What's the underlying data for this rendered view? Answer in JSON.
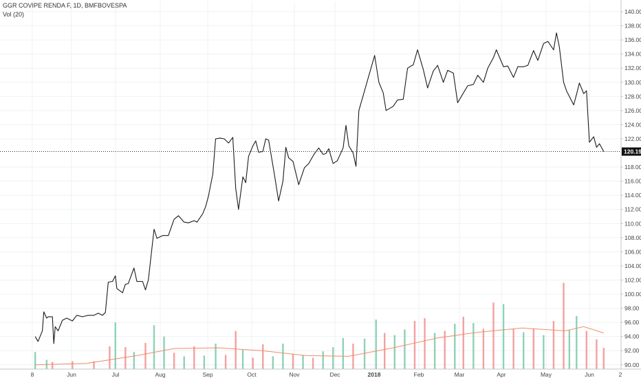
{
  "legend": {
    "title": "GGR COVIPE RENDA F, 1D, BMFBOVESPA",
    "volume": "Vol (20)"
  },
  "chart_data": {
    "type": "line",
    "title": "GGR COVIPE RENDA F, 1D, BMFBOVESPA",
    "ylim": [
      89.0,
      141.0
    ],
    "grid": true,
    "y_ticks": [
      "140.00",
      "138.00",
      "136.00",
      "134.00",
      "132.00",
      "130.00",
      "128.00",
      "126.00",
      "124.00",
      "122.00",
      "118.00",
      "116.00",
      "114.00",
      "112.00",
      "110.00",
      "108.00",
      "106.00",
      "104.00",
      "102.00",
      "100.00",
      "98.00",
      "96.00",
      "94.00",
      "92.00",
      "90.00"
    ],
    "x_ticks": [
      "8",
      "Jun",
      "Jul",
      "Aug",
      "Sep",
      "Oct",
      "Nov",
      "Dec",
      "2018",
      "Feb",
      "Mar",
      "Apr",
      "May",
      "Jun",
      "2"
    ],
    "last_price": 120.19,
    "last_price_label": "120.19",
    "colors": {
      "price": "#1a1a1a",
      "up_volume": "#8fd1b4",
      "down_volume": "#f4a0a0",
      "vol_ma": "#f08c6b",
      "grid": "#eef1f4",
      "axis_text": "#444444"
    },
    "price": [
      [
        "2017-05-10",
        94.0
      ],
      [
        "2017-05-12",
        93.3
      ],
      [
        "2017-05-15",
        94.8
      ],
      [
        "2017-05-16",
        97.5
      ],
      [
        "2017-05-18",
        96.6
      ],
      [
        "2017-05-19",
        96.8
      ],
      [
        "2017-05-22",
        96.8
      ],
      [
        "2017-05-23",
        93.0
      ],
      [
        "2017-05-24",
        95.4
      ],
      [
        "2017-05-26",
        94.8
      ],
      [
        "2017-05-29",
        96.3
      ],
      [
        "2017-06-01",
        96.6
      ],
      [
        "2017-06-05",
        96.2
      ],
      [
        "2017-06-08",
        97.0
      ],
      [
        "2017-06-12",
        96.8
      ],
      [
        "2017-06-16",
        97.0
      ],
      [
        "2017-06-20",
        97.0
      ],
      [
        "2017-06-23",
        97.3
      ],
      [
        "2017-06-26",
        97.0
      ],
      [
        "2017-06-28",
        97.4
      ],
      [
        "2017-06-30",
        101.7
      ],
      [
        "2017-07-03",
        101.8
      ],
      [
        "2017-07-05",
        102.6
      ],
      [
        "2017-07-06",
        100.8
      ],
      [
        "2017-07-10",
        100.2
      ],
      [
        "2017-07-12",
        101.4
      ],
      [
        "2017-07-14",
        101.5
      ],
      [
        "2017-07-18",
        103.7
      ],
      [
        "2017-07-20",
        101.8
      ],
      [
        "2017-07-24",
        101.8
      ],
      [
        "2017-07-26",
        100.6
      ],
      [
        "2017-07-28",
        102.0
      ],
      [
        "2017-08-01",
        109.2
      ],
      [
        "2017-08-03",
        107.9
      ],
      [
        "2017-08-07",
        108.3
      ],
      [
        "2017-08-11",
        108.3
      ],
      [
        "2017-08-15",
        110.6
      ],
      [
        "2017-08-18",
        111.1
      ],
      [
        "2017-08-22",
        110.2
      ],
      [
        "2017-08-25",
        110.1
      ],
      [
        "2017-08-29",
        110.4
      ],
      [
        "2017-08-31",
        110.2
      ],
      [
        "2017-09-04",
        111.4
      ],
      [
        "2017-09-06",
        112.4
      ],
      [
        "2017-09-08",
        113.9
      ],
      [
        "2017-09-11",
        117.0
      ],
      [
        "2017-09-13",
        122.0
      ],
      [
        "2017-09-16",
        122.1
      ],
      [
        "2017-09-19",
        122.0
      ],
      [
        "2017-09-22",
        121.4
      ],
      [
        "2017-09-25",
        122.2
      ],
      [
        "2017-09-27",
        115.0
      ],
      [
        "2017-09-29",
        112.0
      ],
      [
        "2017-10-02",
        116.6
      ],
      [
        "2017-10-04",
        115.8
      ],
      [
        "2017-10-06",
        119.5
      ],
      [
        "2017-10-09",
        121.0
      ],
      [
        "2017-10-11",
        121.7
      ],
      [
        "2017-10-13",
        120.1
      ],
      [
        "2017-10-16",
        120.2
      ],
      [
        "2017-10-18",
        122.0
      ],
      [
        "2017-10-20",
        121.8
      ],
      [
        "2017-10-24",
        117.0
      ],
      [
        "2017-10-27",
        113.2
      ],
      [
        "2017-10-30",
        116.0
      ],
      [
        "2017-11-01",
        120.8
      ],
      [
        "2017-11-03",
        119.3
      ],
      [
        "2017-11-06",
        118.8
      ],
      [
        "2017-11-10",
        115.5
      ],
      [
        "2017-11-14",
        117.9
      ],
      [
        "2017-11-17",
        118.5
      ],
      [
        "2017-11-21",
        119.9
      ],
      [
        "2017-11-24",
        120.7
      ],
      [
        "2017-11-27",
        119.8
      ],
      [
        "2017-11-29",
        119.9
      ],
      [
        "2017-12-01",
        120.6
      ],
      [
        "2017-12-04",
        118.5
      ],
      [
        "2017-12-07",
        118.9
      ],
      [
        "2017-12-11",
        120.7
      ],
      [
        "2017-12-13",
        123.9
      ],
      [
        "2017-12-15",
        121.0
      ],
      [
        "2017-12-18",
        120.0
      ],
      [
        "2017-12-20",
        118.1
      ],
      [
        "2017-12-22",
        126.0
      ],
      [
        "2018-01-02",
        133.8
      ],
      [
        "2018-01-05",
        130.0
      ],
      [
        "2018-01-08",
        128.5
      ],
      [
        "2018-01-10",
        126.0
      ],
      [
        "2018-01-15",
        126.6
      ],
      [
        "2018-01-18",
        127.5
      ],
      [
        "2018-01-22",
        127.6
      ],
      [
        "2018-01-25",
        132.0
      ],
      [
        "2018-01-29",
        132.5
      ],
      [
        "2018-02-01",
        134.6
      ],
      [
        "2018-02-05",
        131.8
      ],
      [
        "2018-02-08",
        129.2
      ],
      [
        "2018-02-12",
        131.6
      ],
      [
        "2018-02-15",
        132.4
      ],
      [
        "2018-02-19",
        130.0
      ],
      [
        "2018-02-22",
        131.7
      ],
      [
        "2018-02-26",
        131.3
      ],
      [
        "2018-03-01",
        127.1
      ],
      [
        "2018-03-05",
        128.5
      ],
      [
        "2018-03-08",
        129.5
      ],
      [
        "2018-03-12",
        129.7
      ],
      [
        "2018-03-15",
        131.0
      ],
      [
        "2018-03-19",
        130.0
      ],
      [
        "2018-03-22",
        132.0
      ],
      [
        "2018-03-26",
        133.5
      ],
      [
        "2018-03-28",
        134.6
      ],
      [
        "2018-04-02",
        132.2
      ],
      [
        "2018-04-05",
        132.3
      ],
      [
        "2018-04-09",
        130.7
      ],
      [
        "2018-04-12",
        132.2
      ],
      [
        "2018-04-16",
        132.2
      ],
      [
        "2018-04-19",
        132.4
      ],
      [
        "2018-04-23",
        134.5
      ],
      [
        "2018-04-26",
        133.1
      ],
      [
        "2018-04-30",
        135.5
      ],
      [
        "2018-05-03",
        135.8
      ],
      [
        "2018-05-07",
        134.6
      ],
      [
        "2018-05-09",
        137.0
      ],
      [
        "2018-05-11",
        135.0
      ],
      [
        "2018-05-14",
        130.0
      ],
      [
        "2018-05-16",
        128.8
      ],
      [
        "2018-05-21",
        126.8
      ],
      [
        "2018-05-23",
        128.3
      ],
      [
        "2018-05-25",
        129.9
      ],
      [
        "2018-05-28",
        128.4
      ],
      [
        "2018-05-30",
        128.8
      ],
      [
        "2018-06-01",
        121.5
      ],
      [
        "2018-06-04",
        122.3
      ],
      [
        "2018-06-06",
        120.8
      ],
      [
        "2018-06-08",
        121.3
      ],
      [
        "2018-06-11",
        120.19
      ]
    ],
    "volume": [
      [
        "2017-05-10",
        91.8,
        "up"
      ],
      [
        "2017-05-18",
        90.7,
        "up"
      ],
      [
        "2017-05-22",
        90.4,
        "down"
      ],
      [
        "2017-06-05",
        90.5,
        "down"
      ],
      [
        "2017-06-20",
        90.5,
        "down"
      ],
      [
        "2017-07-01",
        92.6,
        "down"
      ],
      [
        "2017-07-05",
        96.0,
        "up"
      ],
      [
        "2017-07-12",
        92.5,
        "down"
      ],
      [
        "2017-07-18",
        91.8,
        "up"
      ],
      [
        "2017-07-26",
        93.1,
        "down"
      ],
      [
        "2017-08-01",
        95.6,
        "up"
      ],
      [
        "2017-08-08",
        94.0,
        "up"
      ],
      [
        "2017-08-15",
        91.7,
        "down"
      ],
      [
        "2017-08-22",
        91.2,
        "up"
      ],
      [
        "2017-08-29",
        92.6,
        "down"
      ],
      [
        "2017-09-05",
        91.3,
        "up"
      ],
      [
        "2017-09-13",
        93.0,
        "up"
      ],
      [
        "2017-09-20",
        91.4,
        "down"
      ],
      [
        "2017-09-27",
        94.8,
        "down"
      ],
      [
        "2017-10-02",
        92.1,
        "up"
      ],
      [
        "2017-10-09",
        91.0,
        "down"
      ],
      [
        "2017-10-16",
        92.9,
        "down"
      ],
      [
        "2017-10-23",
        91.2,
        "up"
      ],
      [
        "2017-10-30",
        93.0,
        "up"
      ],
      [
        "2017-11-06",
        91.5,
        "down"
      ],
      [
        "2017-11-13",
        91.4,
        "up"
      ],
      [
        "2017-11-20",
        91.0,
        "down"
      ],
      [
        "2017-11-27",
        91.9,
        "up"
      ],
      [
        "2017-12-04",
        92.5,
        "up"
      ],
      [
        "2017-12-11",
        93.8,
        "up"
      ],
      [
        "2017-12-18",
        93.0,
        "down"
      ],
      [
        "2017-12-26",
        93.7,
        "up"
      ],
      [
        "2018-01-03",
        96.4,
        "up"
      ],
      [
        "2018-01-09",
        94.5,
        "down"
      ],
      [
        "2018-01-16",
        94.2,
        "up"
      ],
      [
        "2018-01-23",
        95.0,
        "up"
      ],
      [
        "2018-01-30",
        96.2,
        "down"
      ],
      [
        "2018-02-06",
        96.6,
        "down"
      ],
      [
        "2018-02-13",
        94.5,
        "up"
      ],
      [
        "2018-02-20",
        94.8,
        "down"
      ],
      [
        "2018-02-27",
        95.8,
        "up"
      ],
      [
        "2018-03-05",
        96.8,
        "down"
      ],
      [
        "2018-03-12",
        95.9,
        "up"
      ],
      [
        "2018-03-19",
        95.1,
        "down"
      ],
      [
        "2018-03-26",
        98.8,
        "down"
      ],
      [
        "2018-04-02",
        98.6,
        "up"
      ],
      [
        "2018-04-09",
        95.1,
        "down"
      ],
      [
        "2018-04-16",
        94.6,
        "up"
      ],
      [
        "2018-04-23",
        95.1,
        "down"
      ],
      [
        "2018-04-30",
        94.2,
        "up"
      ],
      [
        "2018-05-07",
        96.2,
        "down"
      ],
      [
        "2018-05-14",
        101.6,
        "down"
      ],
      [
        "2018-05-18",
        94.9,
        "up"
      ],
      [
        "2018-05-23",
        96.9,
        "up"
      ],
      [
        "2018-05-30",
        94.8,
        "down"
      ],
      [
        "2018-06-06",
        93.6,
        "down"
      ],
      [
        "2018-06-11",
        92.4,
        "down"
      ]
    ],
    "vol_ma": [
      [
        "2017-05-10",
        90.0
      ],
      [
        "2017-06-15",
        90.2
      ],
      [
        "2017-07-20",
        91.3
      ],
      [
        "2017-08-15",
        92.3
      ],
      [
        "2017-09-15",
        92.4
      ],
      [
        "2017-10-15",
        92.0
      ],
      [
        "2017-11-15",
        91.3
      ],
      [
        "2017-12-15",
        91.2
      ],
      [
        "2018-01-15",
        92.4
      ],
      [
        "2018-02-15",
        93.8
      ],
      [
        "2018-03-15",
        94.6
      ],
      [
        "2018-04-15",
        95.2
      ],
      [
        "2018-05-15",
        94.8
      ],
      [
        "2018-05-28",
        95.4
      ],
      [
        "2018-06-11",
        94.5
      ]
    ]
  }
}
